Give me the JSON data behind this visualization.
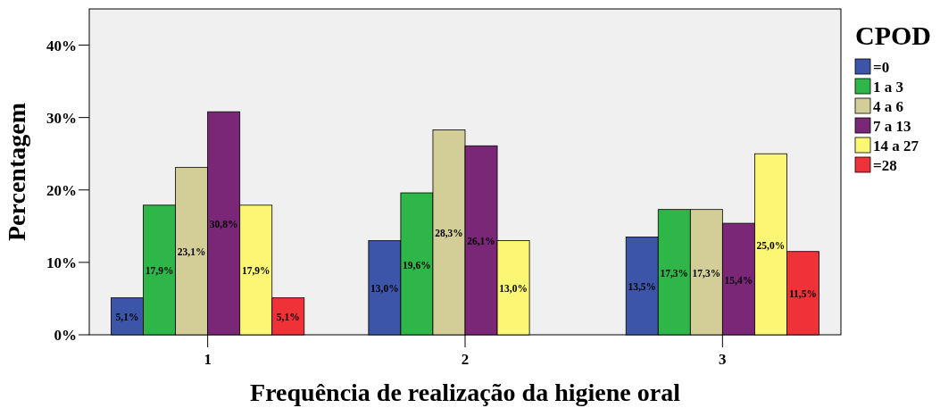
{
  "chart_data": {
    "type": "bar",
    "xlabel": "Frequência de realização da higiene oral",
    "ylabel": "Percentagem",
    "legend_title": "CPOD",
    "legend": "right",
    "categories": [
      "1",
      "2",
      "3"
    ],
    "ylim": [
      0,
      45
    ],
    "yticks": [
      {
        "value": 0,
        "label": "0%"
      },
      {
        "value": 10,
        "label": "10%"
      },
      {
        "value": 20,
        "label": "20%"
      },
      {
        "value": 30,
        "label": "30%"
      },
      {
        "value": 40,
        "label": "40%"
      }
    ],
    "series": [
      {
        "name": "=0",
        "color": "#3d55a8",
        "values": [
          5.1,
          13.0,
          13.5
        ],
        "value_labels": [
          "5,1%",
          "13,0%",
          "13,5%"
        ]
      },
      {
        "name": "1 a 3",
        "color": "#2fb648",
        "values": [
          17.9,
          19.6,
          17.3
        ],
        "value_labels": [
          "17,9%",
          "19,6%",
          "17,3%"
        ]
      },
      {
        "name": "4 a 6",
        "color": "#d3ce98",
        "values": [
          23.1,
          28.3,
          17.3
        ],
        "value_labels": [
          "23,1%",
          "28,3%",
          "17,3%"
        ]
      },
      {
        "name": "7 a 13",
        "color": "#7b2778",
        "values": [
          30.8,
          26.1,
          15.4
        ],
        "value_labels": [
          "30,8%",
          "26,1%",
          "15,4%"
        ]
      },
      {
        "name": "14 a 27",
        "color": "#fbf673",
        "values": [
          17.9,
          13.0,
          25.0
        ],
        "value_labels": [
          "17,9%",
          "13,0%",
          "25,0%"
        ]
      },
      {
        "name": "=28",
        "color": "#ee3237",
        "values": [
          5.1,
          0,
          11.5
        ],
        "value_labels": [
          "5,1%",
          null,
          "11,5%"
        ]
      }
    ]
  }
}
